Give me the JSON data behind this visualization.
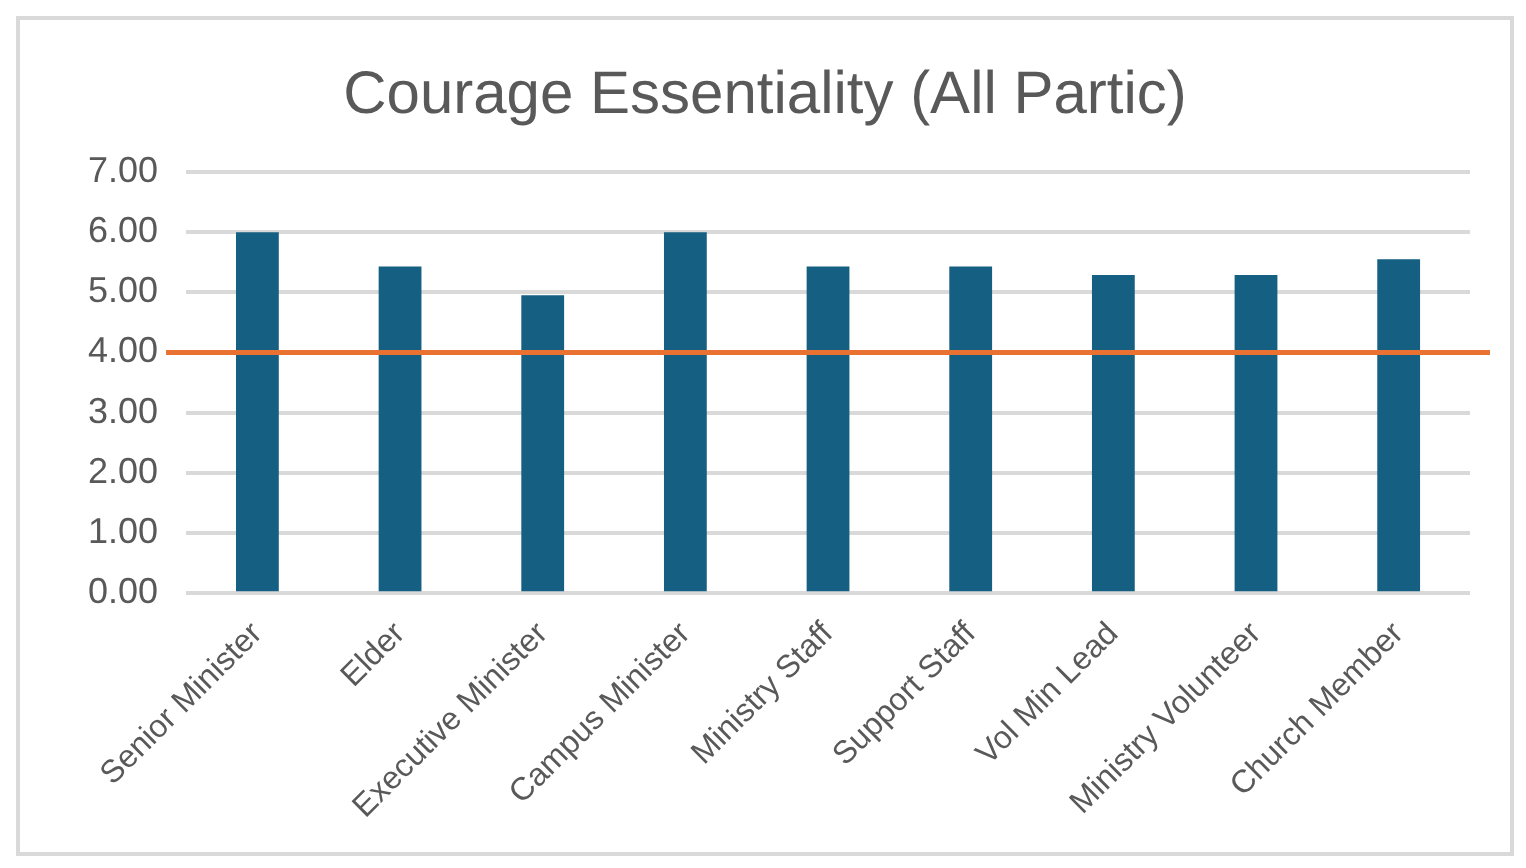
{
  "chart_data": {
    "type": "bar",
    "title": "Courage Essentiality (All Partic)",
    "categories": [
      "Senior Minister",
      "Elder",
      "Executive Minister",
      "Campus Minister",
      "Ministry Staff",
      "Support Staff",
      "Vol Min Lead",
      "Ministry Volunteer",
      "Church Member"
    ],
    "values": [
      6.0,
      5.43,
      4.95,
      6.0,
      5.43,
      5.43,
      5.29,
      5.29,
      5.55
    ],
    "color": "#155f82",
    "ylim": [
      0,
      7
    ],
    "yticks": [
      {
        "value": 0,
        "label": "0.00"
      },
      {
        "value": 1,
        "label": "1.00"
      },
      {
        "value": 2,
        "label": "2.00"
      },
      {
        "value": 3,
        "label": "3.00"
      },
      {
        "value": 4,
        "label": "4.00"
      },
      {
        "value": 5,
        "label": "5.00"
      },
      {
        "value": 6,
        "label": "6.00"
      },
      {
        "value": 7,
        "label": "7.00"
      }
    ],
    "ref_lines": [
      {
        "axis": "y",
        "value": 4,
        "color": "#e97132"
      }
    ],
    "grid": "y",
    "legend": false
  }
}
